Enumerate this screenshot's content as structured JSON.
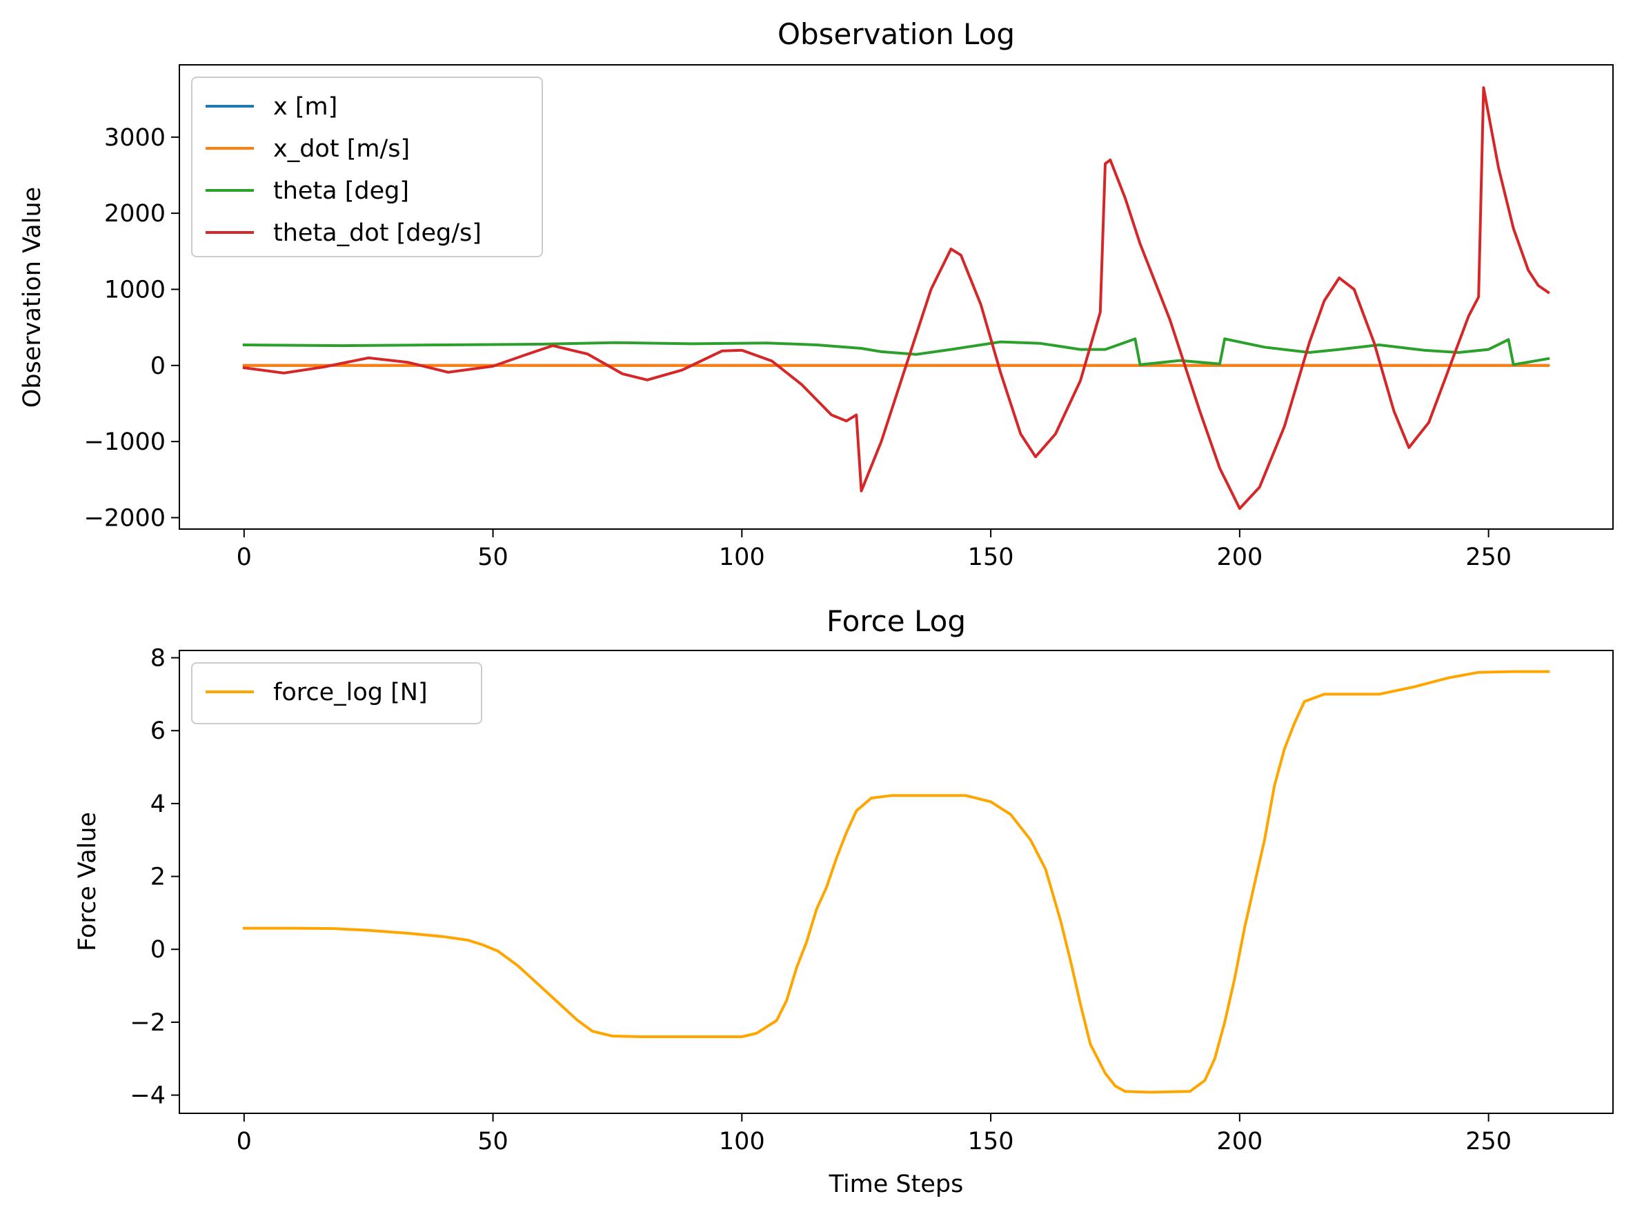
{
  "chart_data": [
    {
      "type": "line",
      "title": "Observation Log",
      "xlabel": "",
      "ylabel": "Observation Value",
      "xlim": [
        -13,
        275
      ],
      "ylim": [
        -2150,
        3950
      ],
      "xticks": [
        0,
        50,
        100,
        150,
        200,
        250
      ],
      "yticks": [
        -2000,
        -1000,
        0,
        1000,
        2000,
        3000
      ],
      "legend_position": "upper left",
      "series": [
        {
          "name": "x [m]",
          "color": "#1f77b4",
          "points": [
            [
              0,
              0
            ],
            [
              262,
              0
            ]
          ]
        },
        {
          "name": "x_dot [m/s]",
          "color": "#ff7f0e",
          "points": [
            [
              0,
              0
            ],
            [
              262,
              0
            ]
          ]
        },
        {
          "name": "theta [deg]",
          "color": "#2ca02c",
          "points": [
            [
              0,
              270
            ],
            [
              20,
              260
            ],
            [
              40,
              270
            ],
            [
              60,
              280
            ],
            [
              75,
              300
            ],
            [
              90,
              285
            ],
            [
              105,
              295
            ],
            [
              115,
              270
            ],
            [
              124,
              225
            ],
            [
              128,
              180
            ],
            [
              135,
              145
            ],
            [
              142,
              210
            ],
            [
              152,
              310
            ],
            [
              160,
              290
            ],
            [
              168,
              210
            ],
            [
              173,
              210
            ],
            [
              179,
              350
            ],
            [
              180,
              10
            ],
            [
              188,
              65
            ],
            [
              196,
              20
            ],
            [
              197,
              350
            ],
            [
              205,
              240
            ],
            [
              214,
              170
            ],
            [
              220,
              210
            ],
            [
              228,
              270
            ],
            [
              237,
              200
            ],
            [
              244,
              170
            ],
            [
              250,
              210
            ],
            [
              254,
              340
            ],
            [
              255,
              10
            ],
            [
              262,
              90
            ]
          ]
        },
        {
          "name": "theta_dot [deg/s]",
          "color": "#d62728",
          "points": [
            [
              0,
              -30
            ],
            [
              8,
              -100
            ],
            [
              16,
              -20
            ],
            [
              25,
              100
            ],
            [
              33,
              40
            ],
            [
              41,
              -90
            ],
            [
              50,
              -10
            ],
            [
              57,
              150
            ],
            [
              62,
              260
            ],
            [
              69,
              150
            ],
            [
              76,
              -110
            ],
            [
              81,
              -190
            ],
            [
              88,
              -60
            ],
            [
              96,
              190
            ],
            [
              100,
              200
            ],
            [
              106,
              60
            ],
            [
              112,
              -250
            ],
            [
              118,
              -650
            ],
            [
              121,
              -730
            ],
            [
              123,
              -650
            ],
            [
              124,
              -1650
            ],
            [
              128,
              -1000
            ],
            [
              133,
              0
            ],
            [
              138,
              1000
            ],
            [
              142,
              1530
            ],
            [
              144,
              1450
            ],
            [
              148,
              800
            ],
            [
              152,
              -100
            ],
            [
              156,
              -900
            ],
            [
              159,
              -1200
            ],
            [
              163,
              -900
            ],
            [
              168,
              -200
            ],
            [
              172,
              700
            ],
            [
              173,
              2650
            ],
            [
              174,
              2700
            ],
            [
              177,
              2200
            ],
            [
              180,
              1600
            ],
            [
              186,
              600
            ],
            [
              192,
              -600
            ],
            [
              196,
              -1350
            ],
            [
              200,
              -1880
            ],
            [
              204,
              -1600
            ],
            [
              209,
              -800
            ],
            [
              214,
              300
            ],
            [
              217,
              850
            ],
            [
              220,
              1150
            ],
            [
              223,
              1000
            ],
            [
              227,
              300
            ],
            [
              231,
              -600
            ],
            [
              234,
              -1080
            ],
            [
              238,
              -750
            ],
            [
              242,
              -50
            ],
            [
              246,
              650
            ],
            [
              248,
              900
            ],
            [
              249,
              3650
            ],
            [
              252,
              2600
            ],
            [
              255,
              1800
            ],
            [
              258,
              1250
            ],
            [
              260,
              1050
            ],
            [
              262,
              960
            ]
          ]
        }
      ]
    },
    {
      "type": "line",
      "title": "Force Log",
      "xlabel": "Time Steps",
      "ylabel": "Force Value",
      "xlim": [
        -13,
        275
      ],
      "ylim": [
        -4.5,
        8.2
      ],
      "xticks": [
        0,
        50,
        100,
        150,
        200,
        250
      ],
      "yticks": [
        -4,
        -2,
        0,
        2,
        4,
        6,
        8
      ],
      "legend_position": "upper left",
      "series": [
        {
          "name": "force_log [N]",
          "color": "#ffa500",
          "points": [
            [
              0,
              0.58
            ],
            [
              10,
              0.58
            ],
            [
              18,
              0.57
            ],
            [
              25,
              0.52
            ],
            [
              33,
              0.44
            ],
            [
              40,
              0.35
            ],
            [
              45,
              0.25
            ],
            [
              48,
              0.12
            ],
            [
              51,
              -0.05
            ],
            [
              55,
              -0.45
            ],
            [
              59,
              -0.95
            ],
            [
              63,
              -1.45
            ],
            [
              67,
              -1.95
            ],
            [
              70,
              -2.25
            ],
            [
              74,
              -2.38
            ],
            [
              80,
              -2.4
            ],
            [
              90,
              -2.4
            ],
            [
              100,
              -2.4
            ],
            [
              103,
              -2.3
            ],
            [
              107,
              -1.95
            ],
            [
              109,
              -1.4
            ],
            [
              111,
              -0.5
            ],
            [
              113,
              0.2
            ],
            [
              115,
              1.1
            ],
            [
              117,
              1.7
            ],
            [
              119,
              2.5
            ],
            [
              121,
              3.2
            ],
            [
              123,
              3.8
            ],
            [
              126,
              4.15
            ],
            [
              130,
              4.22
            ],
            [
              145,
              4.22
            ],
            [
              150,
              4.05
            ],
            [
              154,
              3.7
            ],
            [
              158,
              3.0
            ],
            [
              161,
              2.2
            ],
            [
              164,
              0.8
            ],
            [
              166,
              -0.3
            ],
            [
              168,
              -1.5
            ],
            [
              170,
              -2.6
            ],
            [
              173,
              -3.4
            ],
            [
              175,
              -3.75
            ],
            [
              177,
              -3.9
            ],
            [
              182,
              -3.92
            ],
            [
              190,
              -3.9
            ],
            [
              193,
              -3.6
            ],
            [
              195,
              -3.0
            ],
            [
              197,
              -2.0
            ],
            [
              199,
              -0.8
            ],
            [
              201,
              0.6
            ],
            [
              203,
              1.8
            ],
            [
              205,
              3.0
            ],
            [
              207,
              4.5
            ],
            [
              209,
              5.5
            ],
            [
              211,
              6.2
            ],
            [
              213,
              6.8
            ],
            [
              217,
              7.0
            ],
            [
              228,
              7.0
            ],
            [
              235,
              7.2
            ],
            [
              242,
              7.45
            ],
            [
              248,
              7.6
            ],
            [
              255,
              7.62
            ],
            [
              262,
              7.62
            ]
          ]
        }
      ]
    }
  ]
}
